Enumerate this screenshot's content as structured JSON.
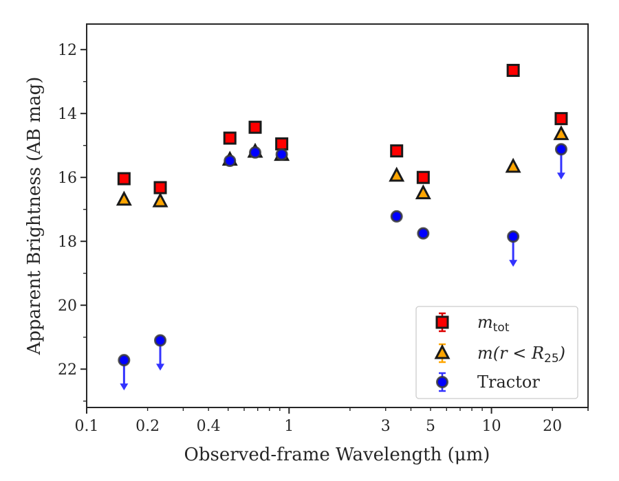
{
  "chart_data": {
    "type": "scatter",
    "xlabel": "Observed-frame Wavelength (μm)",
    "ylabel": "Apparent Brightness (AB mag)",
    "x_scale": "log",
    "xlim": [
      0.1,
      30
    ],
    "ylim": [
      23.2,
      11.2
    ],
    "y_inverted": true,
    "x_ticks": [
      {
        "value": 0.1,
        "label": "0.1"
      },
      {
        "value": 0.2,
        "label": "0.2"
      },
      {
        "value": 0.4,
        "label": "0.4"
      },
      {
        "value": 1,
        "label": "1"
      },
      {
        "value": 3,
        "label": "3"
      },
      {
        "value": 5,
        "label": "5"
      },
      {
        "value": 10,
        "label": "10"
      },
      {
        "value": 20,
        "label": "20"
      }
    ],
    "y_ticks": [
      {
        "value": 12,
        "label": "12"
      },
      {
        "value": 14,
        "label": "14"
      },
      {
        "value": 16,
        "label": "16"
      },
      {
        "value": 18,
        "label": "18"
      },
      {
        "value": 20,
        "label": "20"
      },
      {
        "value": 22,
        "label": "22"
      }
    ],
    "grid": false,
    "legend_position": "lower-right",
    "series": [
      {
        "key": "mtot",
        "legend_main": "m",
        "legend_sub": "tot",
        "marker": "square",
        "face_color": "#ff0000",
        "edge_color": "#1a1a1a",
        "err_color": "#dd0000",
        "points": [
          {
            "x": 0.153,
            "y": 16.04
          },
          {
            "x": 0.231,
            "y": 16.32
          },
          {
            "x": 0.51,
            "y": 14.77
          },
          {
            "x": 0.68,
            "y": 14.43
          },
          {
            "x": 0.92,
            "y": 14.95
          },
          {
            "x": 3.4,
            "y": 15.17
          },
          {
            "x": 4.6,
            "y": 16.0
          },
          {
            "x": 12.8,
            "y": 12.65
          },
          {
            "x": 22.1,
            "y": 14.16
          }
        ]
      },
      {
        "key": "mr25",
        "legend_main": "m(r < R",
        "legend_sub": "25",
        "legend_tail": ")",
        "marker": "triangle",
        "face_color": "#ffa500",
        "edge_color": "#1a1a1a",
        "err_color": "#ffa500",
        "points": [
          {
            "x": 0.153,
            "y": 16.7
          },
          {
            "x": 0.231,
            "y": 16.75
          },
          {
            "x": 0.51,
            "y": 15.45
          },
          {
            "x": 0.68,
            "y": 15.2
          },
          {
            "x": 0.92,
            "y": 15.3
          },
          {
            "x": 3.4,
            "y": 15.95
          },
          {
            "x": 4.6,
            "y": 16.5
          },
          {
            "x": 12.8,
            "y": 15.67
          },
          {
            "x": 22.1,
            "y": 14.65
          }
        ]
      },
      {
        "key": "tractor",
        "legend_main": "Tractor",
        "marker": "circle",
        "face_color": "#0000ff",
        "edge_color": "#3a3a3a",
        "err_color": "#3333ff",
        "points": [
          {
            "x": 0.153,
            "y": 21.72,
            "upper_limit": true
          },
          {
            "x": 0.231,
            "y": 21.1,
            "upper_limit": true
          },
          {
            "x": 0.51,
            "y": 15.48
          },
          {
            "x": 0.68,
            "y": 15.22
          },
          {
            "x": 0.92,
            "y": 15.28
          },
          {
            "x": 3.4,
            "y": 17.22
          },
          {
            "x": 4.6,
            "y": 17.75
          },
          {
            "x": 12.8,
            "y": 17.85,
            "upper_limit": true
          },
          {
            "x": 22.1,
            "y": 15.12,
            "upper_limit": true
          }
        ]
      }
    ]
  }
}
